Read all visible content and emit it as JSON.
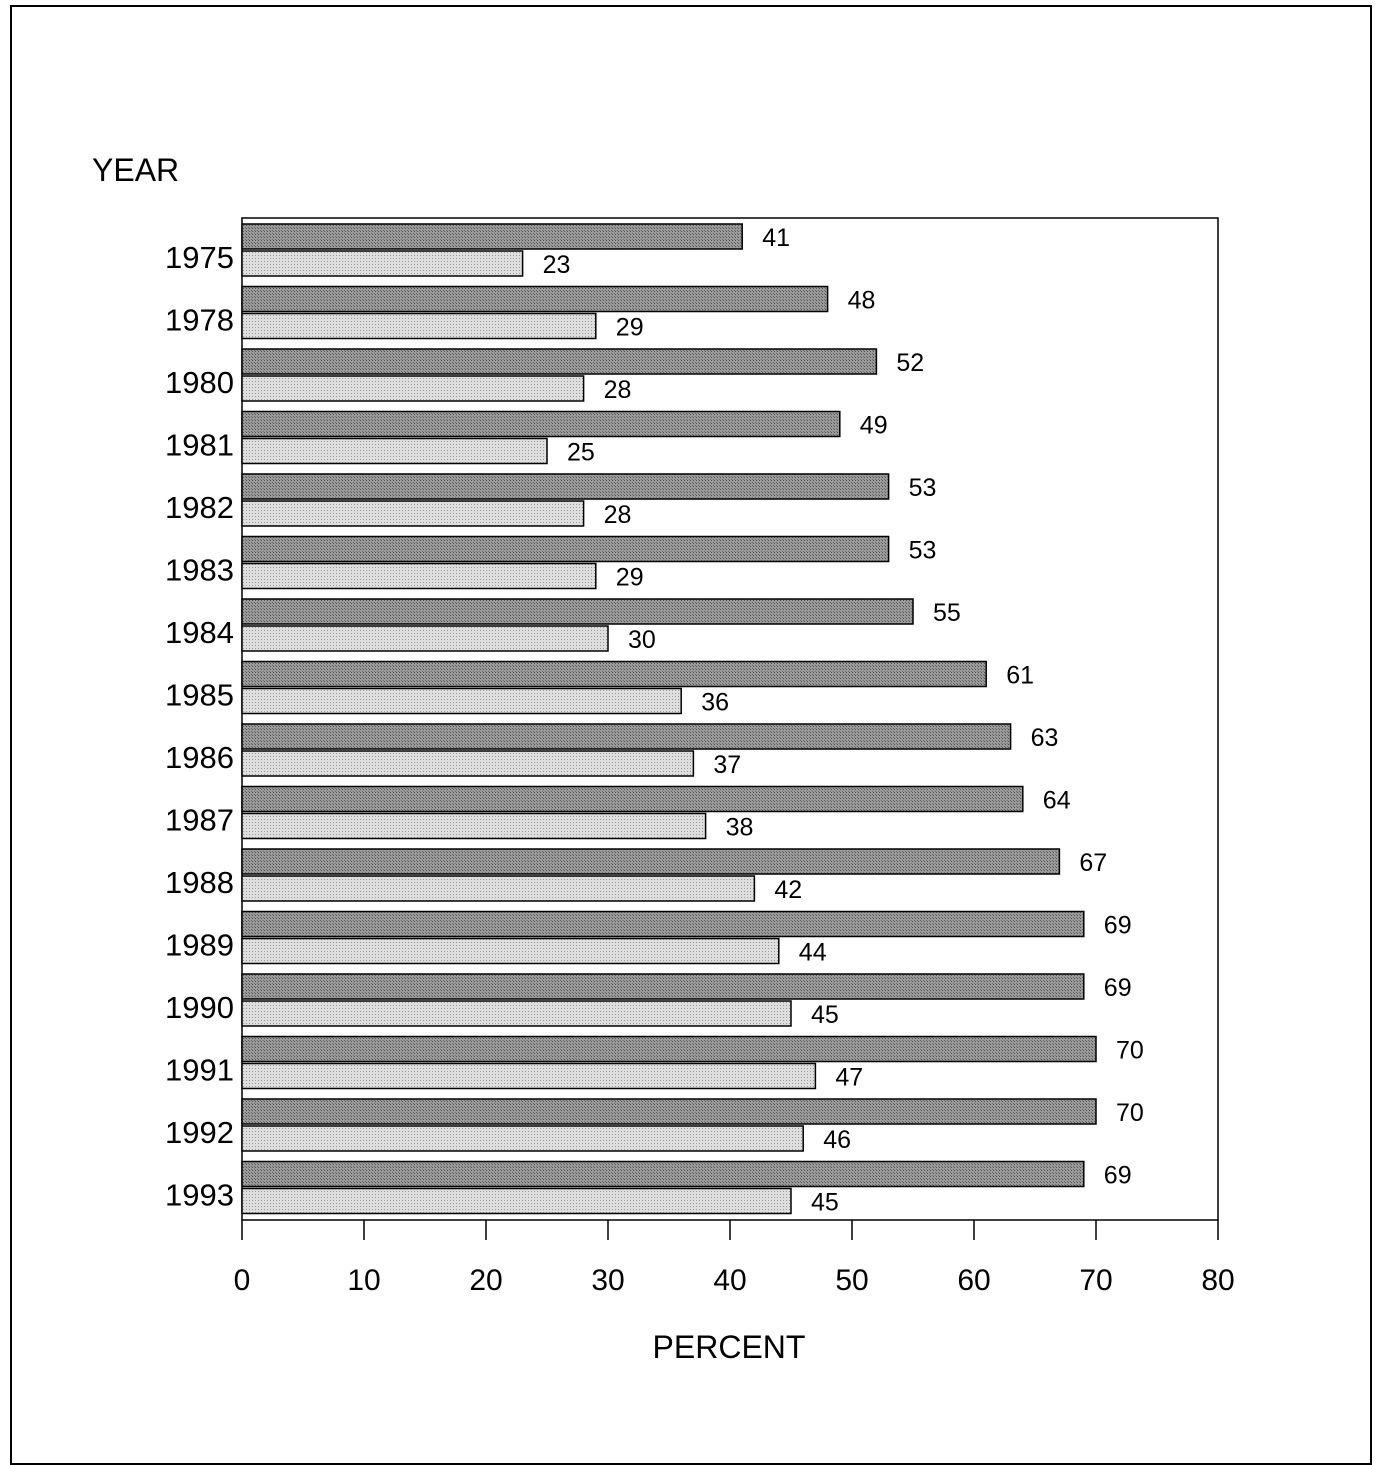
{
  "chart_data": {
    "type": "bar",
    "orientation": "horizontal",
    "categories": [
      "1975",
      "1978",
      "1980",
      "1981",
      "1982",
      "1983",
      "1984",
      "1985",
      "1986",
      "1987",
      "1988",
      "1989",
      "1990",
      "1991",
      "1992",
      "1993"
    ],
    "series": [
      {
        "values": [
          41,
          48,
          52,
          49,
          53,
          53,
          55,
          61,
          63,
          64,
          67,
          69,
          69,
          70,
          70,
          69
        ],
        "color": "#8c8c8c"
      },
      {
        "values": [
          23,
          29,
          28,
          25,
          28,
          29,
          30,
          36,
          37,
          38,
          42,
          44,
          45,
          47,
          46,
          45
        ],
        "color": "#d2d2d2"
      }
    ],
    "ylabel": "YEAR",
    "xlabel": "PERCENT",
    "xlim": [
      0,
      80
    ],
    "xticks": [
      0,
      10,
      20,
      30,
      40,
      50,
      60,
      70,
      80
    ],
    "grid": false
  }
}
